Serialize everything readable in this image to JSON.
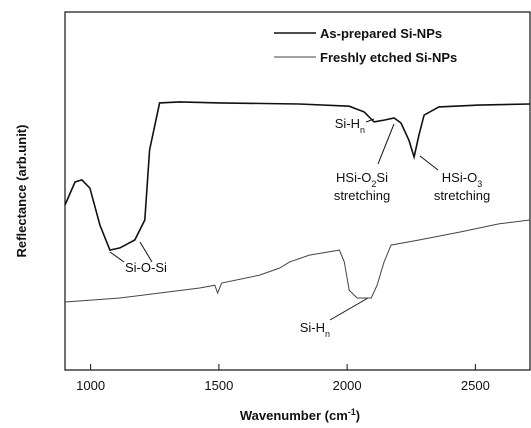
{
  "chart_data": {
    "type": "line",
    "x_label": [
      "Wavenumber (cm",
      "-1",
      ")"
    ],
    "y_label": "Reflectance (arb.unit)",
    "xlim": [
      900,
      2713
    ],
    "xticks": [
      1000,
      1500,
      2000,
      2500
    ],
    "ylim": [
      0,
      100
    ],
    "legend": "top-right",
    "series": [
      {
        "name": "As-prepared Si-NPs",
        "color": "#111111",
        "width": 1.6,
        "x": [
          900,
          939,
          966,
          997,
          1036,
          1075,
          1114,
          1172,
          1211,
          1230,
          1269,
          1347,
          1502,
          1813,
          2008,
          2066,
          2105,
          2144,
          2183,
          2210,
          2241,
          2261,
          2280,
          2300,
          2358,
          2514,
          2713
        ],
        "values": [
          46.1,
          52.5,
          53.1,
          50.8,
          40.5,
          33.5,
          34.1,
          36.3,
          41.9,
          61.5,
          74.6,
          74.9,
          74.6,
          74.3,
          73.7,
          72.1,
          69.3,
          69.8,
          70.4,
          69.0,
          64.2,
          59.5,
          65.6,
          71.2,
          73.5,
          74.0,
          74.3
        ]
      },
      {
        "name": "Freshly etched Si-NPs",
        "color": "#444444",
        "width": 1,
        "x": [
          900,
          1114,
          1425,
          1484,
          1495,
          1511,
          1659,
          1737,
          1776,
          1853,
          1970,
          1989,
          2008,
          2039,
          2094,
          2117,
          2144,
          2171,
          2280,
          2436,
          2591,
          2712
        ],
        "values": [
          19.0,
          20.1,
          22.9,
          23.7,
          21.5,
          24.3,
          26.5,
          28.5,
          30.2,
          32.1,
          33.5,
          30.2,
          22.3,
          20.1,
          20.1,
          23.7,
          30.2,
          34.9,
          36.3,
          38.5,
          40.8,
          41.9
        ]
      }
    ],
    "annotations": [
      {
        "label": [
          "Si-O-Si"
        ]
      },
      {
        "label": [
          "Si-H",
          "n"
        ]
      },
      {
        "label": [
          "HSi-O",
          "2",
          "Si"
        ],
        "note": "stretching"
      },
      {
        "label": [
          "HSi-O",
          "3"
        ],
        "note": "stretching"
      },
      {
        "label": [
          "Si-H",
          "n"
        ]
      }
    ]
  }
}
